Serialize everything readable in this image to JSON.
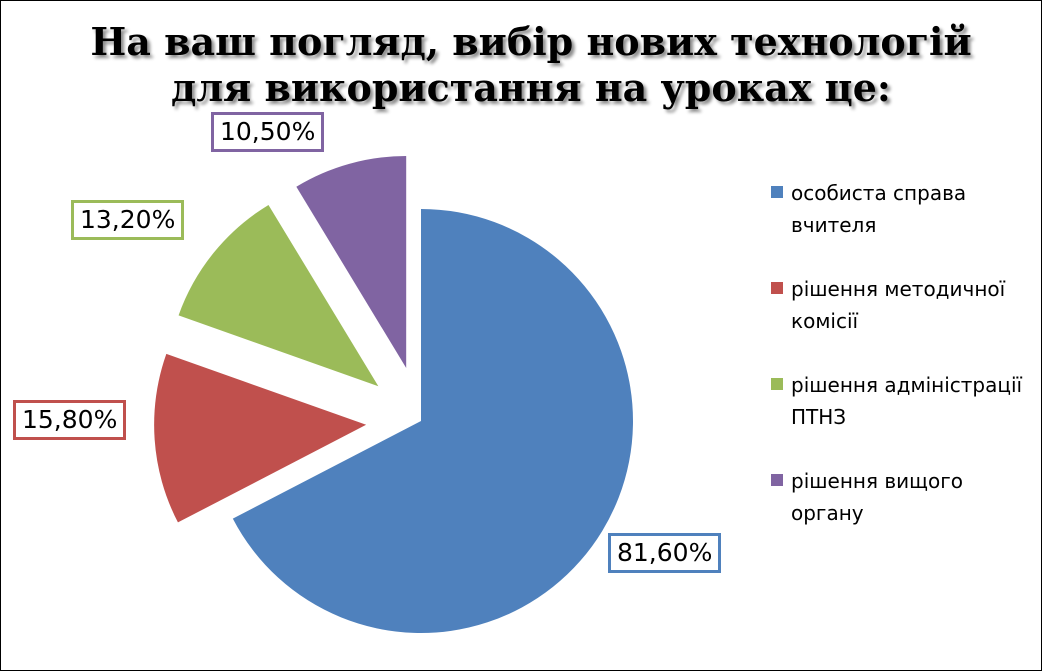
{
  "chart_data": {
    "type": "pie",
    "title_lines": [
      "На ваш погляд, вибір нових технологій",
      "для використання на уроках це:"
    ],
    "legend_position": "right",
    "exploded": true,
    "slices": [
      {
        "name": "особиста справа вчителя",
        "value": 81.6,
        "label": "81,60%",
        "color": "#4F81BD"
      },
      {
        "name": "рішення методичної комісії",
        "value": 15.8,
        "label": "15,80%",
        "color": "#C0504D"
      },
      {
        "name": "рішення адміністрації ПТНЗ",
        "value": 13.2,
        "label": "13,20%",
        "color": "#9BBB59"
      },
      {
        "name": "рішення вищого органу",
        "value": 10.5,
        "label": "10,50%",
        "color": "#8064A2"
      }
    ]
  }
}
